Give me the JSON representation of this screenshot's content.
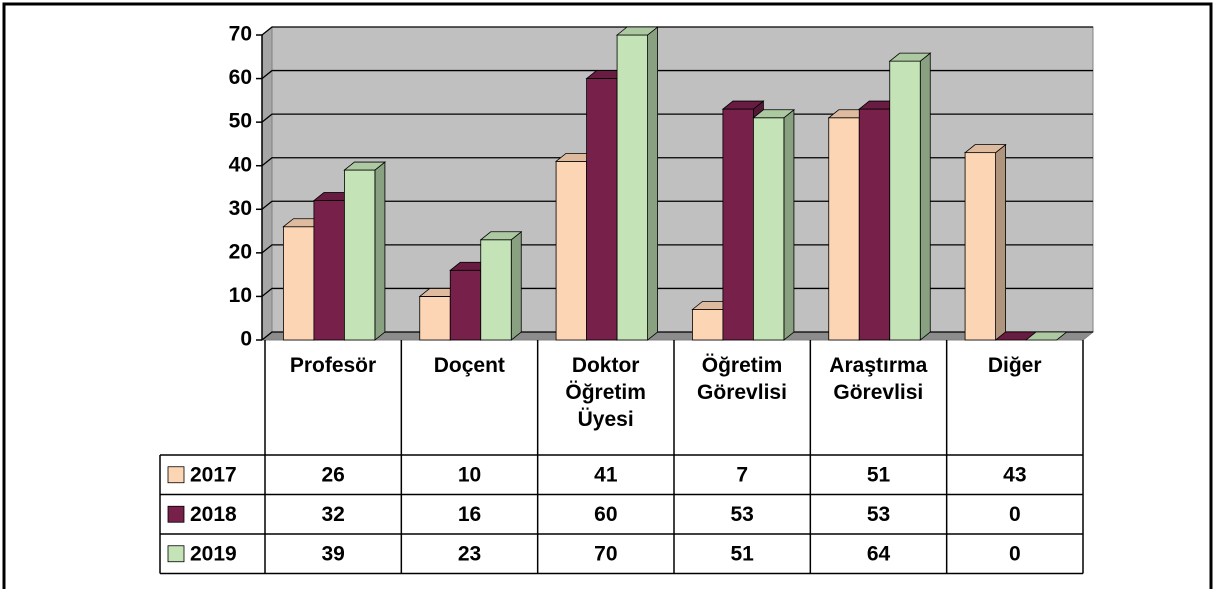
{
  "chart_data": {
    "type": "bar",
    "categories": [
      "Profesör",
      "Doçent",
      "Doktor Öğretim Üyesi",
      "Öğretim Görevlisi",
      "Araştırma Görevlisi",
      "Diğer"
    ],
    "series": [
      {
        "name": "2017",
        "color": "#fcd5b4",
        "values": [
          26,
          10,
          41,
          7,
          51,
          43
        ]
      },
      {
        "name": "2018",
        "color": "#76204a",
        "values": [
          32,
          16,
          60,
          53,
          53,
          0
        ]
      },
      {
        "name": "2019",
        "color": "#c4e4b8",
        "values": [
          39,
          23,
          70,
          51,
          64,
          0
        ]
      }
    ],
    "ylim": [
      0,
      70
    ],
    "yticks": [
      0,
      10,
      20,
      30,
      40,
      50,
      60,
      70
    ],
    "grid": true
  }
}
